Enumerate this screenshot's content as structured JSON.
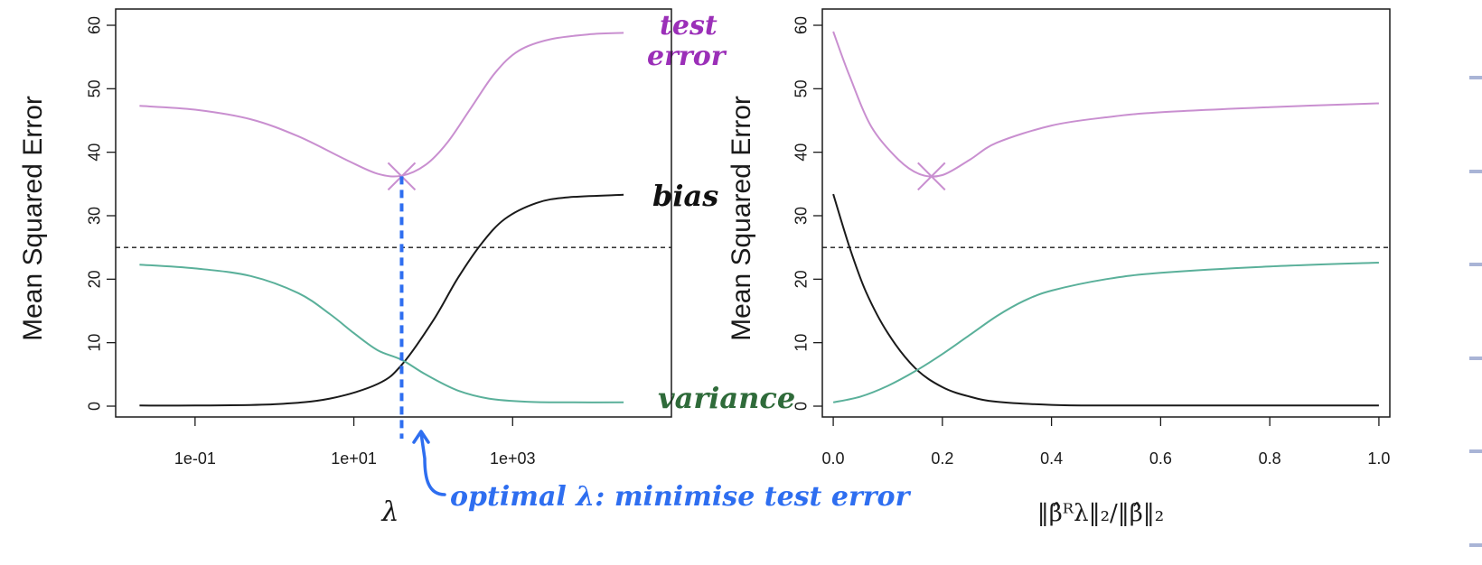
{
  "chart_data": [
    {
      "type": "line",
      "xscale": "log10",
      "xlim": [
        0.01,
        100000
      ],
      "ylim": [
        0,
        60
      ],
      "ylabel": "Mean Squared Error",
      "xlabel": "λ",
      "xticks": [
        "1e-01",
        "1e+01",
        "1e+03"
      ],
      "yticks": [
        "0",
        "10",
        "20",
        "30",
        "40",
        "50",
        "60"
      ],
      "hline": 25,
      "series": [
        {
          "name": "test error",
          "color": "#c98fd0",
          "x": [
            0.02,
            0.1,
            0.5,
            2,
            8,
            20,
            40,
            80,
            150,
            300,
            600,
            1200,
            3000,
            10000,
            25000
          ],
          "y": [
            47.3,
            46.7,
            45.2,
            42.5,
            38.8,
            36.6,
            36.3,
            38.0,
            41.5,
            47.0,
            52.5,
            56.0,
            57.8,
            58.6,
            58.8
          ]
        },
        {
          "name": "bias",
          "color": "#1a1a1a",
          "x": [
            0.02,
            0.1,
            1,
            5,
            20,
            40,
            100,
            200,
            400,
            800,
            2000,
            5000,
            25000
          ],
          "y": [
            0.1,
            0.1,
            0.3,
            1.2,
            3.5,
            6.5,
            13.5,
            20.0,
            25.5,
            29.5,
            32.0,
            32.9,
            33.3
          ]
        },
        {
          "name": "variance",
          "color": "#5ab09a",
          "x": [
            0.02,
            0.1,
            0.5,
            2,
            5,
            10,
            20,
            40,
            80,
            200,
            500,
            1500,
            5000,
            25000
          ],
          "y": [
            22.3,
            21.7,
            20.5,
            17.8,
            14.5,
            11.5,
            8.8,
            7.3,
            5.0,
            2.5,
            1.2,
            0.7,
            0.6,
            0.6
          ]
        }
      ],
      "markers": [
        {
          "x": 40,
          "y": 36.2,
          "symbol": "x",
          "color": "#c98fd0"
        }
      ],
      "vline": {
        "x": 40,
        "color": "#2e6ef0"
      },
      "annotations": [
        {
          "text": "test",
          "color": "#9b2fb8"
        },
        {
          "text": "error",
          "color": "#9b2fb8"
        },
        {
          "text": "bias",
          "color": "#111111"
        },
        {
          "text": "variance",
          "color": "#2f6b3a"
        },
        {
          "text": "optimal λ: minimise test error",
          "color": "#2e6ef0"
        }
      ]
    },
    {
      "type": "line",
      "xlim": [
        -0.02,
        1.02
      ],
      "ylim": [
        0,
        60
      ],
      "ylabel": "Mean Squared Error",
      "xlabel": "‖β̂ᴿλ‖₂/‖β̂‖₂",
      "xticks": [
        "0.0",
        "0.2",
        "0.4",
        "0.6",
        "0.8",
        "1.0"
      ],
      "yticks": [
        "0",
        "10",
        "20",
        "30",
        "40",
        "50",
        "60"
      ],
      "hline": 25,
      "series": [
        {
          "name": "test error",
          "color": "#c98fd0",
          "x": [
            0.0,
            0.03,
            0.07,
            0.12,
            0.16,
            0.2,
            0.25,
            0.3,
            0.4,
            0.5,
            0.6,
            0.8,
            1.0
          ],
          "y": [
            59.0,
            52.0,
            44.0,
            38.8,
            36.5,
            36.4,
            38.8,
            41.5,
            44.2,
            45.5,
            46.3,
            47.1,
            47.7
          ]
        },
        {
          "name": "bias",
          "color": "#1a1a1a",
          "x": [
            0.0,
            0.03,
            0.06,
            0.1,
            0.15,
            0.2,
            0.25,
            0.3,
            0.4,
            0.5,
            0.7,
            1.0
          ],
          "y": [
            33.4,
            25.0,
            18.0,
            11.5,
            6.0,
            3.0,
            1.5,
            0.7,
            0.2,
            0.1,
            0.1,
            0.1
          ]
        },
        {
          "name": "variance",
          "color": "#5ab09a",
          "x": [
            0.0,
            0.05,
            0.1,
            0.15,
            0.2,
            0.25,
            0.3,
            0.35,
            0.4,
            0.5,
            0.6,
            0.8,
            1.0
          ],
          "y": [
            0.6,
            1.5,
            3.2,
            5.5,
            8.2,
            11.2,
            14.2,
            16.6,
            18.2,
            20.0,
            21.0,
            22.0,
            22.6
          ]
        }
      ],
      "markers": [
        {
          "x": 0.18,
          "y": 36.2,
          "symbol": "x",
          "color": "#c98fd0"
        }
      ]
    }
  ]
}
